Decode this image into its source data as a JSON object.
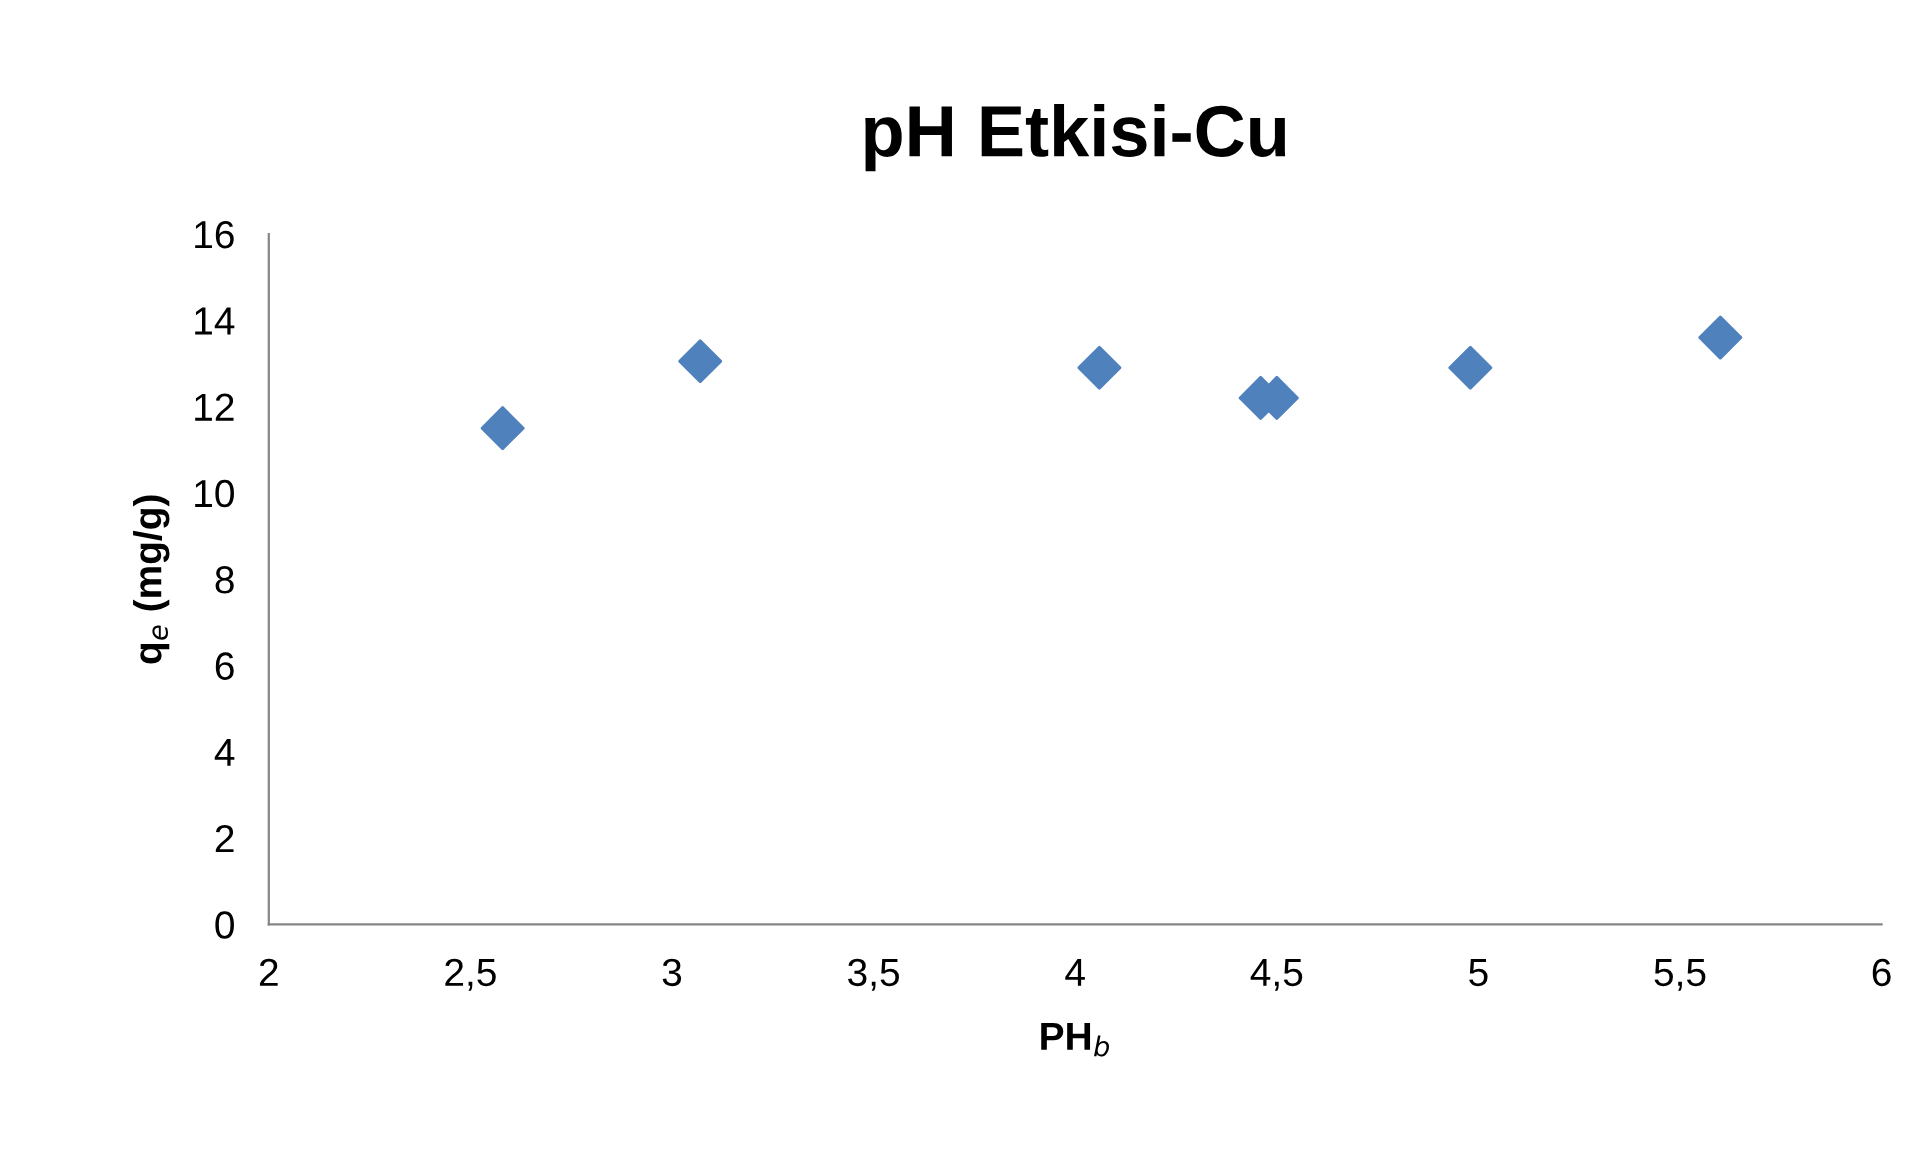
{
  "chart_data": {
    "type": "scatter",
    "title": "pH Etkisi-Cu",
    "xlabel": "PH$_{b}$",
    "ylabel": "q$_{e}$ (mg/g)",
    "x": [
      2.58,
      3.07,
      4.06,
      4.46,
      4.5,
      4.98,
      5.6
    ],
    "series": [
      {
        "color": "#4f81bd",
        "values": [
          11.5,
          13.05,
          12.9,
          12.2,
          12.2,
          12.9,
          13.6
        ]
      }
    ],
    "marker": "diamond",
    "xlim": [
      2,
      6
    ],
    "xticks": [
      2,
      {
        "value": 2.5,
        "label": "2,5"
      },
      3,
      {
        "value": 3.5,
        "label": "3,5"
      },
      4,
      {
        "value": 4.5,
        "label": "4,5"
      },
      5,
      {
        "value": 5.5,
        "label": "5,5"
      },
      6
    ],
    "ylim": [
      0,
      16
    ],
    "yticks": [
      0,
      2,
      4,
      6,
      8,
      10,
      12,
      14,
      16
    ]
  }
}
